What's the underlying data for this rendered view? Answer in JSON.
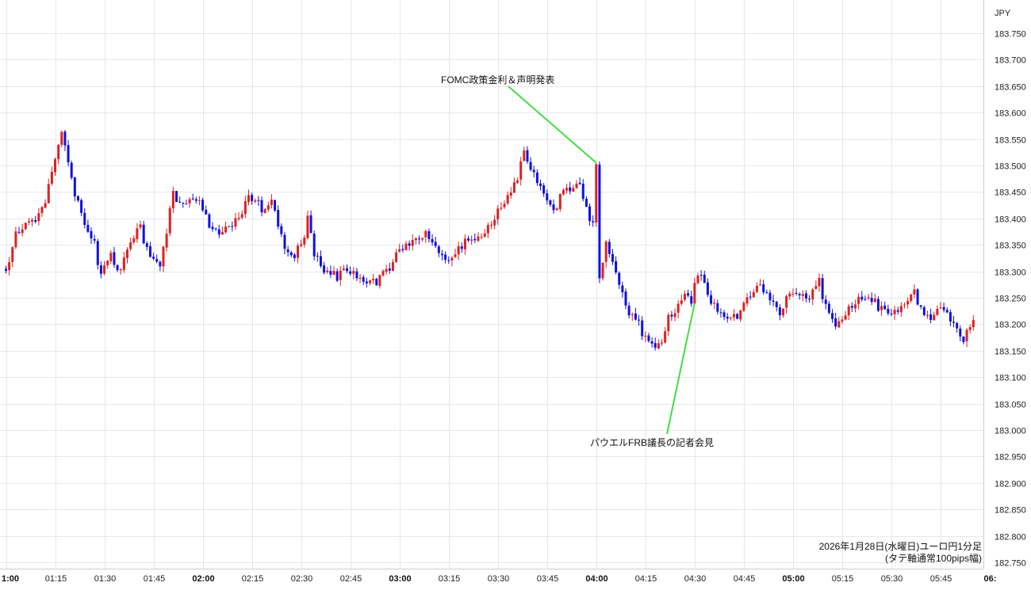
{
  "chart_data": {
    "type": "candlestick",
    "currency": "JPY",
    "ylim": [
      182.75,
      183.77
    ],
    "y_ticks": [
      "183.750",
      "183.700",
      "183.650",
      "183.600",
      "183.550",
      "183.500",
      "183.450",
      "183.400",
      "183.350",
      "183.300",
      "183.250",
      "183.200",
      "183.150",
      "183.100",
      "183.050",
      "183.000",
      "182.950",
      "182.900",
      "182.850",
      "182.800",
      "182.750"
    ],
    "x_ticks": [
      {
        "label": "1:00",
        "bold": true
      },
      {
        "label": "01:15",
        "bold": false
      },
      {
        "label": "01:30",
        "bold": false
      },
      {
        "label": "01:45",
        "bold": false
      },
      {
        "label": "02:00",
        "bold": true
      },
      {
        "label": "02:15",
        "bold": false
      },
      {
        "label": "02:30",
        "bold": false
      },
      {
        "label": "02:45",
        "bold": false
      },
      {
        "label": "03:00",
        "bold": true
      },
      {
        "label": "03:15",
        "bold": false
      },
      {
        "label": "03:30",
        "bold": false
      },
      {
        "label": "03:45",
        "bold": false
      },
      {
        "label": "04:00",
        "bold": true
      },
      {
        "label": "04:15",
        "bold": false
      },
      {
        "label": "04:30",
        "bold": false
      },
      {
        "label": "04:45",
        "bold": false
      },
      {
        "label": "05:00",
        "bold": true
      },
      {
        "label": "05:15",
        "bold": false
      },
      {
        "label": "05:30",
        "bold": false
      },
      {
        "label": "05:45",
        "bold": false
      },
      {
        "label": "06:",
        "bold": true
      }
    ],
    "annotations": [
      {
        "text": "FOMC政策金利＆声明発表",
        "time": "04:00",
        "price": 183.505
      },
      {
        "text": "パウエルFRB議長の記者会見",
        "time": "04:30",
        "price": 183.24
      }
    ],
    "footer_line1": "2026年1月28日(水曜日)ユーロ円1分足",
    "footer_line2": "(タテ軸通常100pips幅)",
    "colors": {
      "up": "#e02020",
      "down": "#1010e0",
      "annotation_line": "#44dd44",
      "grid": "#e3e8ee"
    },
    "anchors": [
      [
        "01:00",
        183.3
      ],
      [
        "01:03",
        183.37
      ],
      [
        "01:06",
        183.39
      ],
      [
        "01:09",
        183.4
      ],
      [
        "01:12",
        183.43
      ],
      [
        "01:13",
        183.46
      ],
      [
        "01:15",
        183.52
      ],
      [
        "01:17",
        183.57
      ],
      [
        "01:19",
        183.5
      ],
      [
        "01:21",
        183.45
      ],
      [
        "01:24",
        183.38
      ],
      [
        "01:27",
        183.35
      ],
      [
        "01:29",
        183.29
      ],
      [
        "01:32",
        183.33
      ],
      [
        "01:35",
        183.3
      ],
      [
        "01:38",
        183.36
      ],
      [
        "01:41",
        183.38
      ],
      [
        "01:44",
        183.32
      ],
      [
        "01:47",
        183.31
      ],
      [
        "01:49",
        183.38
      ],
      [
        "01:51",
        183.45
      ],
      [
        "01:54",
        183.42
      ],
      [
        "01:57",
        183.44
      ],
      [
        "02:00",
        183.42
      ],
      [
        "02:02",
        183.38
      ],
      [
        "02:05",
        183.37
      ],
      [
        "02:08",
        183.38
      ],
      [
        "02:11",
        183.4
      ],
      [
        "02:14",
        183.44
      ],
      [
        "02:17",
        183.43
      ],
      [
        "02:19",
        183.41
      ],
      [
        "02:21",
        183.44
      ],
      [
        "02:23",
        183.39
      ],
      [
        "02:25",
        183.35
      ],
      [
        "02:28",
        183.33
      ],
      [
        "02:31",
        183.36
      ],
      [
        "02:32",
        183.41
      ],
      [
        "02:34",
        183.33
      ],
      [
        "02:37",
        183.3
      ],
      [
        "02:41",
        183.29
      ],
      [
        "02:44",
        183.3
      ],
      [
        "02:47",
        183.29
      ],
      [
        "02:50",
        183.28
      ],
      [
        "02:53",
        183.28
      ],
      [
        "02:56",
        183.3
      ],
      [
        "02:59",
        183.33
      ],
      [
        "03:02",
        183.35
      ],
      [
        "03:05",
        183.36
      ],
      [
        "03:08",
        183.37
      ],
      [
        "03:11",
        183.35
      ],
      [
        "03:13",
        183.33
      ],
      [
        "03:16",
        183.32
      ],
      [
        "03:19",
        183.35
      ],
      [
        "03:22",
        183.36
      ],
      [
        "03:25",
        183.37
      ],
      [
        "03:27",
        183.38
      ],
      [
        "03:30",
        183.41
      ],
      [
        "03:33",
        183.44
      ],
      [
        "03:35",
        183.46
      ],
      [
        "03:37",
        183.5
      ],
      [
        "03:38",
        183.52
      ],
      [
        "03:41",
        183.48
      ],
      [
        "03:44",
        183.45
      ],
      [
        "03:47",
        183.41
      ],
      [
        "03:49",
        183.44
      ],
      [
        "03:52",
        183.46
      ],
      [
        "03:55",
        183.46
      ],
      [
        "03:58",
        183.4
      ],
      [
        "03:59",
        183.39
      ],
      [
        "04:00",
        183.5
      ],
      [
        "04:01",
        183.29
      ],
      [
        "04:03",
        183.35
      ],
      [
        "04:05",
        183.32
      ],
      [
        "04:08",
        183.26
      ],
      [
        "04:10",
        183.22
      ],
      [
        "04:13",
        183.2
      ],
      [
        "04:15",
        183.17
      ],
      [
        "04:18",
        183.16
      ],
      [
        "04:20",
        183.17
      ],
      [
        "04:22",
        183.21
      ],
      [
        "04:25",
        183.23
      ],
      [
        "04:27",
        183.26
      ],
      [
        "04:29",
        183.24
      ],
      [
        "04:31",
        183.3
      ],
      [
        "04:33",
        183.27
      ],
      [
        "04:35",
        183.24
      ],
      [
        "04:38",
        183.22
      ],
      [
        "04:41",
        183.21
      ],
      [
        "04:44",
        183.22
      ],
      [
        "04:47",
        183.26
      ],
      [
        "04:50",
        183.27
      ],
      [
        "04:53",
        183.25
      ],
      [
        "04:56",
        183.22
      ],
      [
        "04:59",
        183.26
      ],
      [
        "05:02",
        183.26
      ],
      [
        "05:05",
        183.25
      ],
      [
        "05:08",
        183.28
      ],
      [
        "05:10",
        183.23
      ],
      [
        "05:13",
        183.2
      ],
      [
        "05:16",
        183.22
      ],
      [
        "05:19",
        183.24
      ],
      [
        "05:22",
        183.25
      ],
      [
        "05:25",
        183.24
      ],
      [
        "05:28",
        183.22
      ],
      [
        "05:31",
        183.22
      ],
      [
        "05:34",
        183.24
      ],
      [
        "05:37",
        183.26
      ],
      [
        "05:40",
        183.21
      ],
      [
        "05:43",
        183.22
      ],
      [
        "05:46",
        183.23
      ],
      [
        "05:49",
        183.2
      ],
      [
        "05:52",
        183.17
      ],
      [
        "05:55",
        183.21
      ]
    ]
  }
}
